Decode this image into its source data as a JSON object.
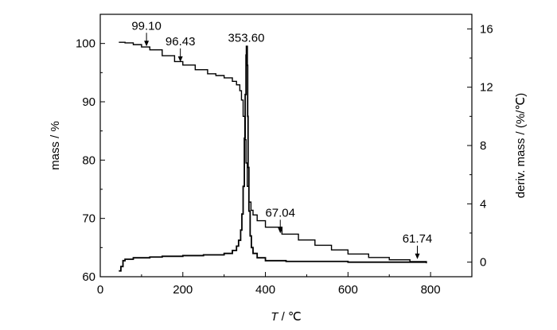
{
  "chart_data": {
    "type": "line",
    "xlabel_symbol": "T",
    "xlabel_unit": " / ℃",
    "ylabel_left": "mass / %",
    "ylabel_right": "deriv. mass / (%/℃)",
    "x_range": [
      0,
      900
    ],
    "y_left_range": [
      60,
      105
    ],
    "y_right_range": [
      -1,
      17
    ],
    "x_ticks": [
      0,
      200,
      400,
      600,
      800
    ],
    "y_left_ticks": [
      60,
      70,
      80,
      90,
      100
    ],
    "y_right_ticks": [
      0,
      4,
      8,
      12,
      16
    ],
    "grid": false,
    "legend": "none",
    "series": [
      {
        "axis": "left",
        "x": [
          45,
          60,
          80,
          100,
          120,
          150,
          180,
          200,
          230,
          260,
          280,
          300,
          320,
          330,
          338,
          342,
          346,
          350,
          353,
          356,
          360,
          365,
          370,
          380,
          400,
          440,
          480,
          520,
          560,
          600,
          650,
          700,
          750,
          790
        ],
        "y": [
          100.2,
          100.1,
          99.8,
          99.4,
          98.9,
          97.9,
          96.9,
          96.3,
          95.5,
          94.8,
          94.5,
          94.1,
          93.5,
          92.9,
          91.9,
          90.3,
          87.5,
          83.5,
          79.5,
          75.5,
          72.8,
          71.4,
          70.6,
          69.6,
          68.5,
          67.3,
          66.3,
          65.4,
          64.6,
          63.9,
          63.3,
          62.9,
          62.6,
          62.3
        ]
      },
      {
        "axis": "right",
        "x": [
          45,
          50,
          55,
          60,
          80,
          100,
          120,
          150,
          200,
          250,
          280,
          300,
          320,
          330,
          335,
          340,
          343,
          346,
          349,
          351,
          353,
          354,
          355,
          356,
          357,
          358,
          360,
          363,
          366,
          370,
          380,
          400,
          450,
          500,
          600,
          700,
          790
        ],
        "y": [
          -0.6,
          -0.3,
          0.1,
          0.2,
          0.3,
          0.3,
          0.35,
          0.4,
          0.45,
          0.5,
          0.5,
          0.6,
          0.8,
          1.1,
          1.5,
          2.2,
          3.3,
          5.2,
          8.5,
          11.5,
          14.2,
          14.8,
          14.8,
          13.5,
          10.0,
          6.5,
          3.5,
          1.8,
          1.0,
          0.6,
          0.3,
          0.1,
          0.05,
          0.05,
          0.0,
          0.0,
          0.0
        ]
      }
    ],
    "annotations": [
      {
        "text": "99.10",
        "x": 112,
        "y": 99.1,
        "axis": "left",
        "arrow": true
      },
      {
        "text": "96.43",
        "x": 194,
        "y": 96.43,
        "axis": "left",
        "arrow": true
      },
      {
        "text": "353.60",
        "x": 353.6,
        "y": 14.8,
        "axis": "right",
        "arrow": false
      },
      {
        "text": "67.04",
        "x": 436,
        "y": 67.04,
        "axis": "left",
        "arrow": true
      },
      {
        "text": "61.74",
        "x": 768,
        "y": 62.6,
        "axis": "left",
        "arrow": true
      }
    ]
  }
}
